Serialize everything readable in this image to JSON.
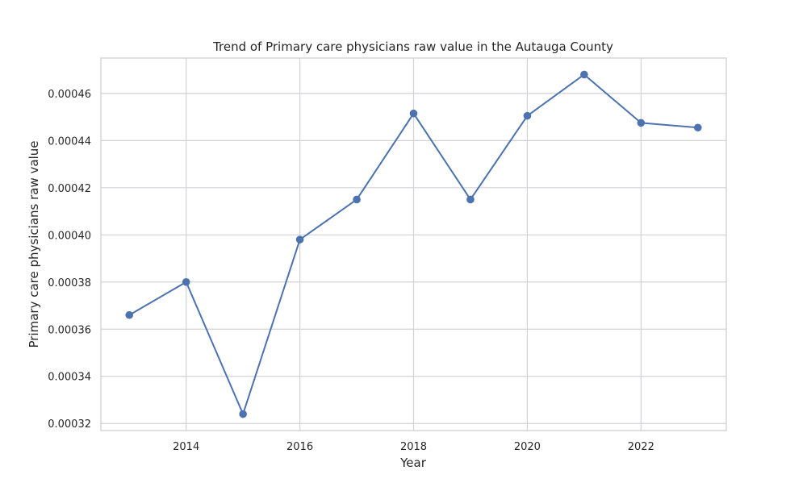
{
  "chart_data": {
    "type": "line",
    "title": "Trend of Primary care physicians raw value in the Autauga County",
    "xlabel": "Year",
    "ylabel": "Primary care physicians raw value",
    "xlim": [
      2012.5,
      2023.5
    ],
    "ylim": [
      0.000317,
      0.000475
    ],
    "xticks": [
      2014,
      2016,
      2018,
      2020,
      2022
    ],
    "xtick_labels": [
      "2014",
      "2016",
      "2018",
      "2020",
      "2022"
    ],
    "yticks": [
      0.00032,
      0.00034,
      0.00036,
      0.00038,
      0.0004,
      0.00042,
      0.00044,
      0.00046
    ],
    "ytick_labels": [
      "0.00032",
      "0.00034",
      "0.00036",
      "0.00038",
      "0.00040",
      "0.00042",
      "0.00044",
      "0.00046"
    ],
    "grid": true,
    "series": [
      {
        "name": "Primary care physicians raw value",
        "color": "#4c72b0",
        "x": [
          2013,
          2014,
          2015,
          2016,
          2017,
          2018,
          2019,
          2020,
          2021,
          2022,
          2023
        ],
        "values": [
          0.000366,
          0.00038,
          0.000324,
          0.000398,
          0.000415,
          0.0004515,
          0.000415,
          0.0004505,
          0.000468,
          0.0004475,
          0.0004455
        ]
      }
    ]
  }
}
